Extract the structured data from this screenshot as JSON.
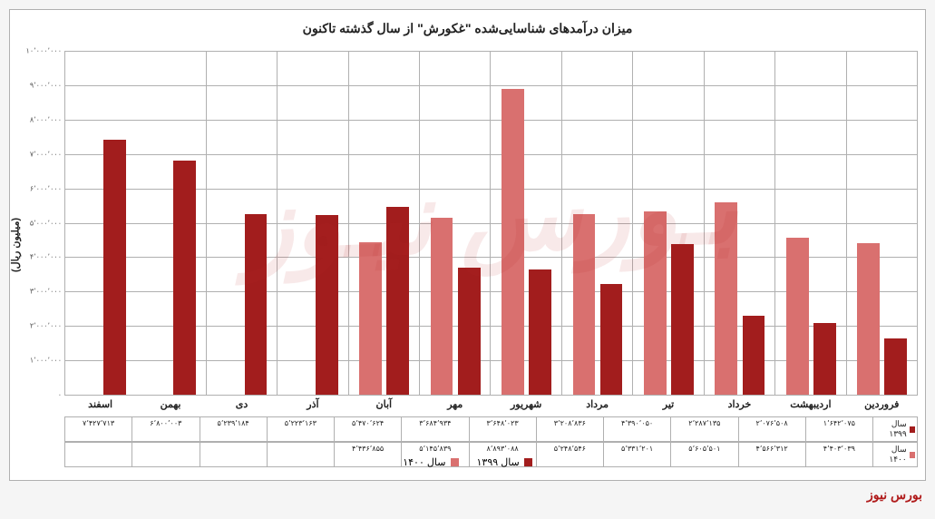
{
  "chart": {
    "type": "bar",
    "title": "میزان درآمدهای شناسایی‌شده \"غکورش\" از سال گذشته تاکنون",
    "title_fontsize": 14,
    "ylabel": "(میلیون ریال)",
    "ylabel_fontsize": 11,
    "ylim": [
      0,
      10000000
    ],
    "ytick_step": 1000000,
    "yticks": [
      "۰",
      "۱٬۰۰۰٬۰۰۰",
      "۲٬۰۰۰٬۰۰۰",
      "۳٬۰۰۰٬۰۰۰",
      "۴٬۰۰۰٬۰۰۰",
      "۵٬۰۰۰٬۰۰۰",
      "۶٬۰۰۰٬۰۰۰",
      "۷٬۰۰۰٬۰۰۰",
      "۸٬۰۰۰٬۰۰۰",
      "۹٬۰۰۰٬۰۰۰",
      "۱۰٬۰۰۰٬۰۰۰"
    ],
    "categories": [
      "فروردین",
      "اردیبهشت",
      "خرداد",
      "تیر",
      "مرداد",
      "شهریور",
      "مهر",
      "آبان",
      "آذر",
      "دی",
      "بهمن",
      "اسفند"
    ],
    "series": [
      {
        "name": "سال ۱۳۹۹",
        "color": "#a21d1d",
        "values": [
          1642075,
          2076508,
          2287135,
          4390050,
          3208836,
          3648023,
          3684934,
          5470624,
          5223163,
          5239184,
          6800003,
          7427713
        ],
        "labels": [
          "۱٬۶۴۲٬۰۷۵",
          "۲٬۰۷۶٬۵۰۸",
          "۲٬۲۸۷٬۱۳۵",
          "۴٬۳۹۰٬۰۵۰",
          "۳٬۲۰۸٬۸۳۶",
          "۳٬۶۴۸٬۰۲۳",
          "۳٬۶۸۴٬۹۳۴",
          "۵٬۴۷۰٬۶۲۴",
          "۵٬۲۲۳٬۱۶۳",
          "۵٬۲۳۹٬۱۸۴",
          "۶٬۸۰۰٬۰۰۳",
          "۷٬۴۲۷٬۷۱۳"
        ]
      },
      {
        "name": "سال ۱۴۰۰",
        "color": "#d9706f",
        "values": [
          4403039,
          4566312,
          5605501,
          5331201,
          5248546,
          8893088,
          5145839,
          4436855,
          null,
          null,
          null,
          null
        ],
        "labels": [
          "۴٬۴۰۳٬۰۳۹",
          "۴٬۵۶۶٬۳۱۲",
          "۵٬۶۰۵٬۵۰۱",
          "۵٬۳۳۱٬۲۰۱",
          "۵٬۲۴۸٬۵۴۶",
          "۸٬۸۹۳٬۰۸۸",
          "۵٬۱۴۵٬۸۳۹",
          "۴٬۴۳۶٬۸۵۵",
          "",
          "",
          "",
          ""
        ]
      }
    ],
    "grid_color": "#b0b0b0",
    "background_color": "#ffffff",
    "watermark_text": "بـورس نیـوز",
    "footer_text": "بورس نیوز",
    "footer_color": "#b01a1a"
  }
}
